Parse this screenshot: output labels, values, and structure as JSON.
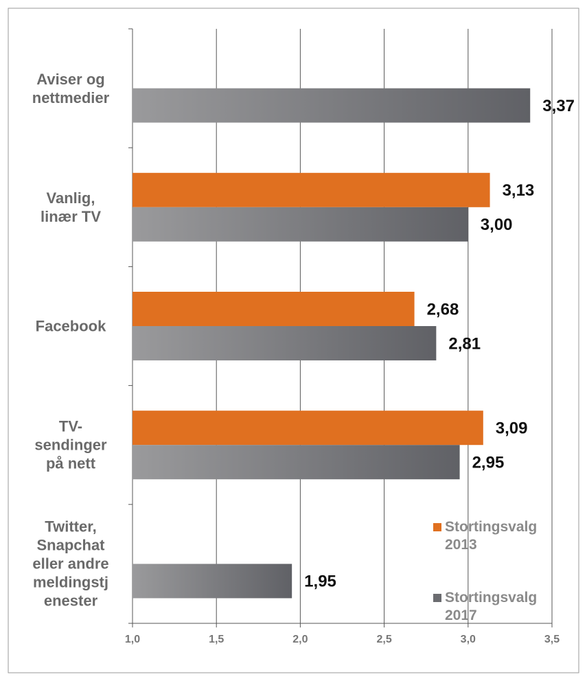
{
  "chart_data": {
    "type": "hbar",
    "categories": [
      "Aviser og\nnettmedier",
      "Vanlig,\nlinær TV",
      "Facebook",
      "TV-\nsendinger\npå nett",
      "Twitter,\nSnapchat\neller andre\nmeldingstj\nenester"
    ],
    "series": [
      {
        "name": "Stortingsvalg 2013",
        "color": "#e07020",
        "values": [
          null,
          3.13,
          2.68,
          3.09,
          null
        ],
        "value_labels": [
          null,
          "3,13",
          "2,68",
          "3,09",
          null
        ]
      },
      {
        "name": "Stortingsvalg 2017",
        "color": "#6b6c70",
        "values": [
          3.37,
          3.0,
          2.81,
          2.95,
          1.95
        ],
        "value_labels": [
          "3,37",
          "3,00",
          "2,81",
          "2,95",
          "1,95"
        ]
      }
    ],
    "xlim": [
      1.0,
      3.5
    ],
    "xticks": [
      {
        "value": 1.0,
        "label": "1,0"
      },
      {
        "value": 1.5,
        "label": "1,5"
      },
      {
        "value": 2.0,
        "label": "2,0"
      },
      {
        "value": 2.5,
        "label": "2,5"
      },
      {
        "value": 3.0,
        "label": "3,0"
      },
      {
        "value": 3.5,
        "label": "3,5"
      }
    ],
    "grid": true,
    "legend": "right"
  }
}
